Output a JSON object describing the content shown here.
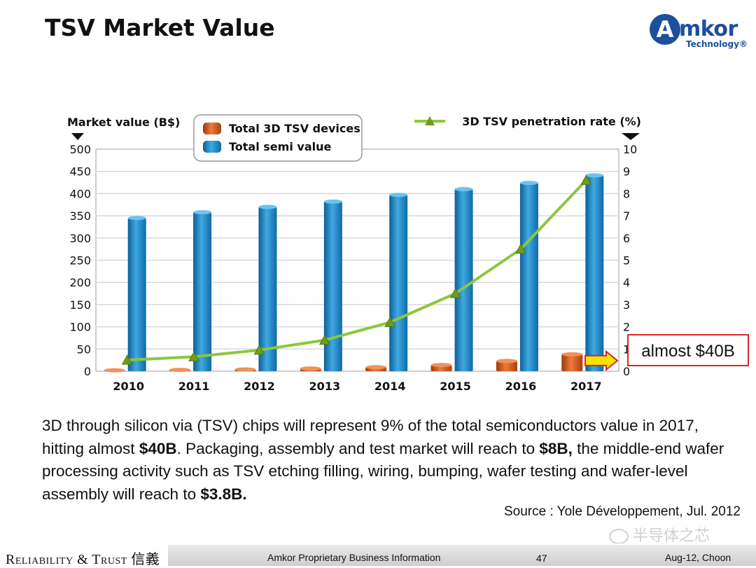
{
  "slide": {
    "title": "TSV Market Value",
    "logo": {
      "mark": "A",
      "word": "mkor",
      "sub": "Technology®"
    },
    "description_parts": [
      {
        "text": "3D through silicon via (TSV) chips will represent 9% of the total semiconductors value in 2017, hitting almost ",
        "bold": false
      },
      {
        "text": "$40B",
        "bold": true
      },
      {
        "text": ". Packaging, assembly and test market will reach to ",
        "bold": false
      },
      {
        "text": "$8B,",
        "bold": true
      },
      {
        "text": " the middle-end wafer processing activity such as TSV etching filling, wiring, bumping, wafer testing and wafer-level assembly will reach to ",
        "bold": false
      },
      {
        "text": "$3.8B.",
        "bold": true
      }
    ],
    "source": "Source : Yole Développement, Jul. 2012",
    "watermark": "半导体之芯",
    "footer": {
      "left": "Reliability & Trust 信義",
      "center": "Amkor Proprietary Business Information",
      "page": "47",
      "right": "Aug-12, Choon"
    }
  },
  "colors": {
    "blue_bar": "#1b88c7",
    "orange_bar": "#cf5a1e",
    "line": "#8cc63e",
    "marker": "#6f9b1f",
    "callout_border": "#d9262c",
    "arrow_fill": "#f5e400",
    "arrow_stroke": "#d9262c"
  },
  "chart_data": {
    "type": "bar",
    "categories": [
      "2010",
      "2011",
      "2012",
      "2013",
      "2014",
      "2015",
      "2016",
      "2017"
    ],
    "left_axis": {
      "label": "Market value (B$)",
      "ylim": [
        0,
        500
      ],
      "ticks": [
        "0",
        "50",
        "100",
        "150",
        "200",
        "250",
        "300",
        "350",
        "400",
        "450",
        "500"
      ]
    },
    "right_axis": {
      "label": "3D TSV penetration rate (%)",
      "ylim": [
        0,
        10
      ],
      "ticks": [
        "0",
        "1",
        "2",
        "3",
        "4",
        "5",
        "6",
        "7",
        "8",
        "9",
        "10"
      ]
    },
    "series": [
      {
        "name": "Total 3D TSV devices",
        "type": "bar",
        "axis": "left",
        "values": [
          2,
          3,
          4,
          6,
          9,
          14,
          23,
          38
        ]
      },
      {
        "name": "Total semi value",
        "type": "bar",
        "axis": "left",
        "values": [
          345,
          358,
          370,
          382,
          397,
          410,
          424,
          441
        ]
      },
      {
        "name": "3D TSV penetration rate (%)",
        "type": "line",
        "axis": "right",
        "values": [
          0.5,
          0.65,
          0.95,
          1.4,
          2.2,
          3.5,
          5.5,
          8.6
        ]
      }
    ],
    "annotation": "almost $40B",
    "grid": true,
    "legend": "top"
  }
}
